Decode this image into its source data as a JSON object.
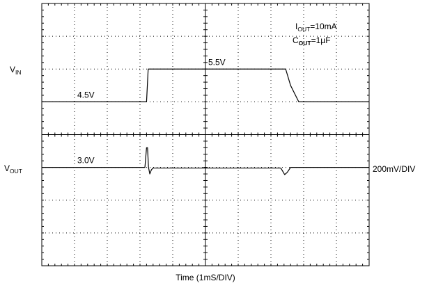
{
  "chart_data": {
    "type": "line",
    "title": "",
    "xlabel": "Time (1mS/DIV)",
    "x_divisions": 10,
    "y_divisions": 8,
    "grid": "dotted",
    "time_per_div_ms": 1,
    "series": [
      {
        "name": "VIN",
        "label_main": "V",
        "label_sub": "IN",
        "level_labels": [
          {
            "text": "4.5V",
            "x": 1.0,
            "y": 1.0
          },
          {
            "text": "5.5V",
            "x": 5.0,
            "y": 2.0
          }
        ],
        "x": [
          0,
          3.15,
          3.2,
          3.25,
          3.45,
          7.45,
          7.6,
          7.85,
          10
        ],
        "y": [
          1.0,
          1.0,
          1.0,
          2.0,
          2.0,
          2.0,
          1.5,
          1.0,
          1.0
        ]
      },
      {
        "name": "VOUT",
        "label_main": "V",
        "label_sub": "OUT",
        "scale_label": "200mV/DIV",
        "level_labels": [
          {
            "text": "3.0V",
            "x": 1.0,
            "y": -1.0
          }
        ],
        "x": [
          0,
          3.15,
          3.2,
          3.23,
          3.26,
          3.3,
          3.35,
          3.4,
          3.5,
          7.3,
          7.35,
          7.42,
          7.5,
          7.6,
          10
        ],
        "y": [
          -1.0,
          -1.0,
          -0.4,
          -0.4,
          -1.0,
          -1.2,
          -1.07,
          -1.02,
          -1.02,
          -1.02,
          -1.1,
          -1.22,
          -1.15,
          -1.0,
          -1.0
        ]
      }
    ],
    "annotations": {
      "iout_main": "I",
      "iout_sub": "OUT",
      "iout_value": "=10mA",
      "cout_main": "C",
      "cout_sub": "OUT",
      "cout_value": "=1µF"
    }
  }
}
